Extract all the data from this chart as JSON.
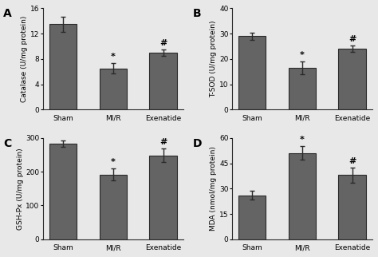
{
  "panels": [
    {
      "label": "A",
      "ylabel": "Catalase (U/mg protein)",
      "ylim": [
        0,
        16
      ],
      "yticks": [
        0,
        4,
        8,
        12,
        16
      ],
      "categories": [
        "Sham",
        "MI/R",
        "Exenatide"
      ],
      "values": [
        13.5,
        6.5,
        9.0
      ],
      "errors": [
        1.2,
        0.8,
        0.5
      ],
      "annotations": [
        "",
        "*",
        "#"
      ]
    },
    {
      "label": "B",
      "ylabel": "T-SOD (U/mg protein)",
      "ylim": [
        0,
        40
      ],
      "yticks": [
        0,
        10,
        20,
        30,
        40
      ],
      "categories": [
        "Sham",
        "MI/R",
        "Exenatide"
      ],
      "values": [
        29.0,
        16.5,
        24.0
      ],
      "errors": [
        1.5,
        2.5,
        1.2
      ],
      "annotations": [
        "",
        "*",
        "#"
      ]
    },
    {
      "label": "C",
      "ylabel": "GSH-Px (U/mg protein)",
      "ylim": [
        0,
        300
      ],
      "yticks": [
        0,
        100,
        200,
        300
      ],
      "categories": [
        "Sham",
        "MI/R",
        "Exenatide"
      ],
      "values": [
        283,
        192,
        248
      ],
      "errors": [
        10,
        18,
        20
      ],
      "annotations": [
        "",
        "*",
        "#"
      ]
    },
    {
      "label": "D",
      "ylabel": "MDA (nmol/mg protein)",
      "ylim": [
        0,
        60
      ],
      "yticks": [
        0,
        15,
        30,
        45,
        60
      ],
      "categories": [
        "Sham",
        "MI/R",
        "Exenatide"
      ],
      "values": [
        26,
        51,
        38
      ],
      "errors": [
        2.5,
        4.0,
        4.5
      ],
      "annotations": [
        "",
        "*",
        "#"
      ]
    }
  ],
  "bar_color": "#646464",
  "bar_width": 0.55,
  "bar_edgecolor": "#2a2a2a",
  "background_color": "#e8e8e8",
  "axes_facecolor": "#e8e8e8",
  "label_fontsize": 6.5,
  "tick_fontsize": 6.5,
  "ann_fontsize": 8,
  "panel_label_fontsize": 10
}
